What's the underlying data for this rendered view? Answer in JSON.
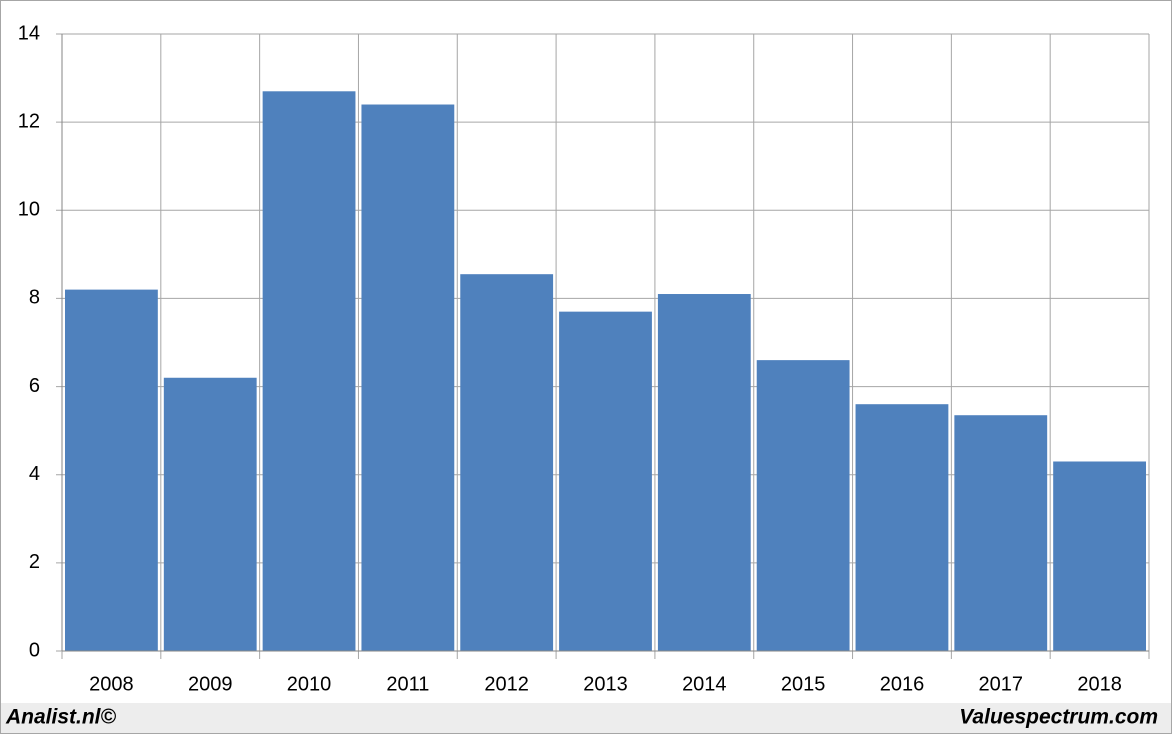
{
  "chart_data": {
    "type": "bar",
    "categories": [
      "2008",
      "2009",
      "2010",
      "2011",
      "2012",
      "2013",
      "2014",
      "2015",
      "2016",
      "2017",
      "2018"
    ],
    "values": [
      8.2,
      6.2,
      12.7,
      12.4,
      8.55,
      7.7,
      8.1,
      6.6,
      5.6,
      5.35,
      4.3
    ],
    "color": "#4f81bd",
    "ylim": [
      0,
      14
    ],
    "yticks": [
      0,
      2,
      4,
      6,
      8,
      10,
      12,
      14
    ],
    "grid": true
  },
  "footer": {
    "left": "Analist.nl©",
    "right": "Valuespectrum.com"
  }
}
